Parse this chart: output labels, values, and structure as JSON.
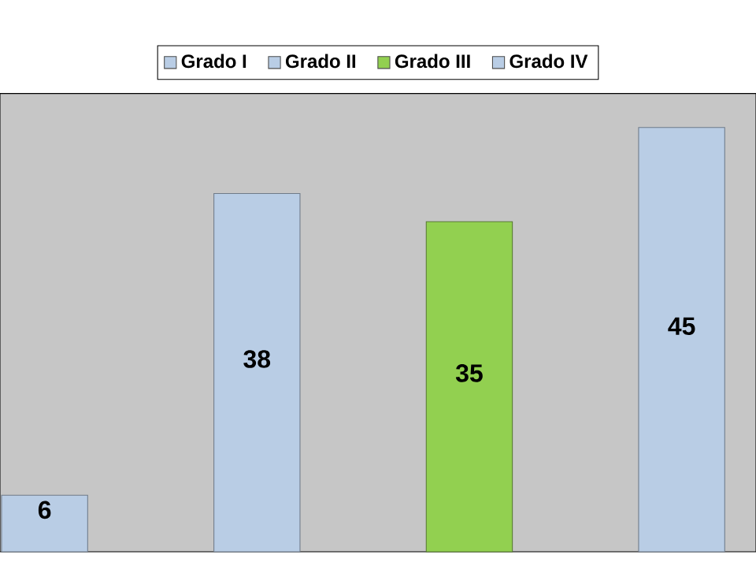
{
  "chart_data": {
    "type": "bar",
    "categories": [
      null,
      null,
      null,
      null
    ],
    "stacked": true,
    "series": [
      {
        "name": "Grado I",
        "color": "#b9cde5",
        "values": [
          6,
          null,
          null,
          null
        ]
      },
      {
        "name": "Grado II",
        "color": "#b9cde5",
        "values": [
          null,
          38,
          null,
          null
        ]
      },
      {
        "name": "Grado III",
        "color": "#92d050",
        "values": [
          null,
          null,
          35,
          null
        ]
      },
      {
        "name": "Grado IV",
        "color": "#b9cde5",
        "values": [
          null,
          null,
          null,
          45
        ]
      }
    ],
    "legend": "top",
    "data_labels": true
  }
}
